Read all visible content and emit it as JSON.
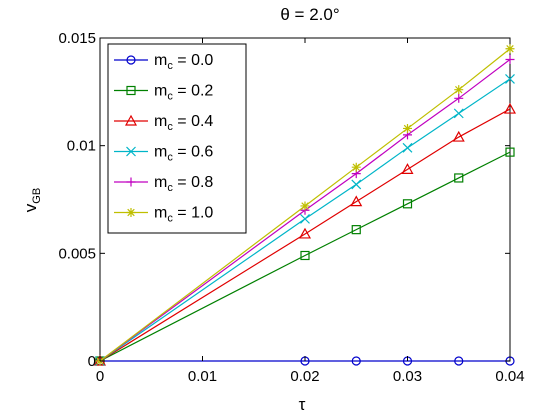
{
  "chart_data": {
    "type": "line",
    "title": "θ = 2.0°",
    "xlabel": "τ",
    "ylabel_main": "v",
    "ylabel_sub": "GB",
    "xlim": [
      0,
      0.04
    ],
    "ylim": [
      0,
      0.015
    ],
    "x_ticks": [
      0,
      0.01,
      0.02,
      0.03,
      0.04
    ],
    "x_tick_labels": [
      "0",
      "0.01",
      "0.02",
      "0.03",
      "0.04"
    ],
    "y_ticks": [
      0,
      0.005,
      0.01,
      0.015
    ],
    "y_tick_labels": [
      "0",
      "0.005",
      "0.01",
      "0.015"
    ],
    "grid": false,
    "legend_placement": "top-left",
    "x": [
      0,
      0.02,
      0.025,
      0.03,
      0.035,
      0.04
    ],
    "series": [
      {
        "name_main": "m",
        "name_sub": "c",
        "name_tail": " = 0.0",
        "color": "#0000cc",
        "marker": "circle",
        "values": [
          0,
          0,
          0,
          0,
          0,
          0
        ]
      },
      {
        "name_main": "m",
        "name_sub": "c",
        "name_tail": " = 0.2",
        "color": "#008000",
        "marker": "square",
        "values": [
          0,
          0.0049,
          0.0061,
          0.0073,
          0.0085,
          0.0097
        ]
      },
      {
        "name_main": "m",
        "name_sub": "c",
        "name_tail": " = 0.4",
        "color": "#e00000",
        "marker": "triangle",
        "values": [
          0,
          0.0059,
          0.0074,
          0.0089,
          0.0104,
          0.0117
        ]
      },
      {
        "name_main": "m",
        "name_sub": "c",
        "name_tail": " = 0.6",
        "color": "#00b5c8",
        "marker": "x",
        "values": [
          0,
          0.0066,
          0.0082,
          0.0099,
          0.0115,
          0.0131
        ]
      },
      {
        "name_main": "m",
        "name_sub": "c",
        "name_tail": " = 0.8",
        "color": "#c000c0",
        "marker": "plus",
        "values": [
          0,
          0.007,
          0.0087,
          0.0105,
          0.0122,
          0.014
        ]
      },
      {
        "name_main": "m",
        "name_sub": "c",
        "name_tail": " = 1.0",
        "color": "#bfbf00",
        "marker": "star",
        "values": [
          0,
          0.0072,
          0.009,
          0.0108,
          0.0126,
          0.0145
        ]
      }
    ]
  }
}
